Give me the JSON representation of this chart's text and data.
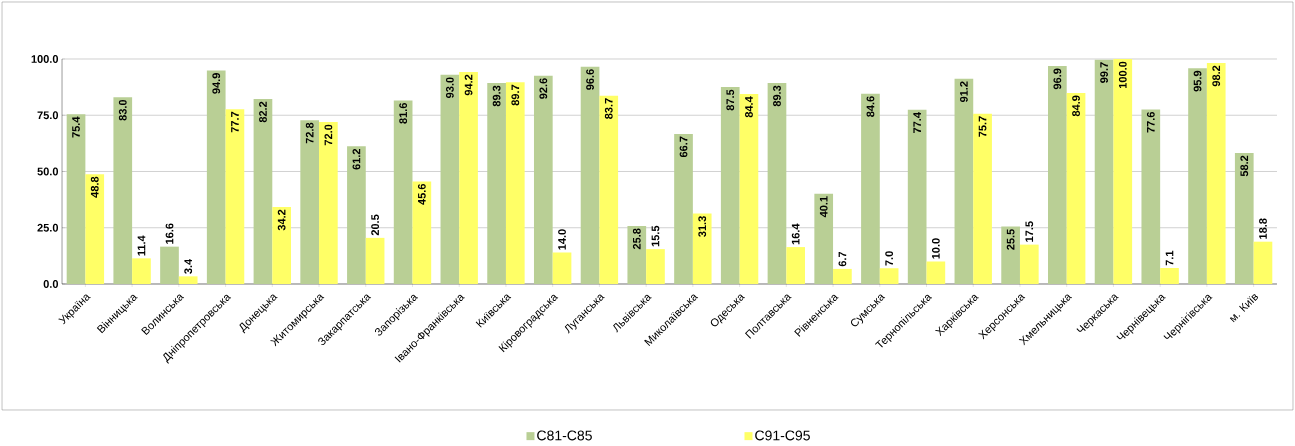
{
  "chart_data": {
    "type": "bar",
    "categories": [
      "Україна",
      "Вінницька",
      "Волинська",
      "Дніпропетровська",
      "Донецька",
      "Житомирська",
      "Закарпатська",
      "Запорізька",
      "Івано-Франківська",
      "Київська",
      "Кіровоградська",
      "Луганська",
      "Львівська",
      "Миколаївська",
      "Одеська",
      "Полтавська",
      "Рівненська",
      "Сумська",
      "Тернопільська",
      "Харківська",
      "Херсонська",
      "Хмельницька",
      "Черкаська",
      "Чернівецька",
      "Чернігівська",
      "м. Київ"
    ],
    "series": [
      {
        "name": "C81-C85",
        "color": "#b9cf95",
        "values": [
          75.4,
          83.0,
          16.6,
          94.9,
          82.2,
          72.8,
          61.2,
          81.6,
          93.0,
          89.3,
          92.6,
          96.6,
          25.8,
          66.7,
          87.5,
          89.3,
          40.1,
          84.6,
          77.4,
          91.2,
          25.5,
          96.9,
          99.7,
          77.6,
          95.9,
          58.2
        ],
        "value_labels": [
          "75.4",
          "83.0",
          "16.6",
          "94.9",
          "82.2",
          "72.8",
          "61.2",
          "81.6",
          "93.0",
          "89.3",
          "92.6",
          "96.6",
          "25.8",
          "66.7",
          "87.5",
          "89.3",
          "40.1",
          "84.6",
          "77.4",
          "91.2",
          "25.5",
          "96.9",
          "99.7",
          "77.6",
          "95.9",
          "58.2"
        ]
      },
      {
        "name": "C91-C95",
        "color": "#ffff66",
        "values": [
          48.8,
          11.4,
          3.4,
          77.7,
          34.2,
          72.0,
          20.5,
          45.6,
          94.2,
          89.7,
          14.0,
          83.7,
          15.5,
          31.3,
          84.4,
          16.4,
          6.7,
          7.0,
          10.0,
          75.7,
          17.5,
          84.9,
          100.0,
          7.1,
          98.2,
          18.8
        ],
        "value_labels": [
          "48.8",
          "11.4",
          "3.4",
          "77.7",
          "34.2",
          "72.0",
          "20.5",
          "45.6",
          "94.2",
          "89.7",
          "14.0",
          "83.7",
          "15.5",
          "31.3",
          "84.4",
          "16.4",
          "6.7",
          "7.0",
          "10.0",
          "75.7",
          "17.5",
          "84.9",
          "100.0",
          "7.1",
          "98.2",
          "18.8"
        ]
      }
    ],
    "ylim": [
      0,
      100
    ],
    "yticks": [
      {
        "value": 0,
        "label": "0.0"
      },
      {
        "value": 25,
        "label": "25.0"
      },
      {
        "value": 50,
        "label": "50.0"
      },
      {
        "value": 75,
        "label": "75.0"
      },
      {
        "value": 100,
        "label": "100.0"
      }
    ],
    "grid": "y",
    "legend": "bottom"
  }
}
